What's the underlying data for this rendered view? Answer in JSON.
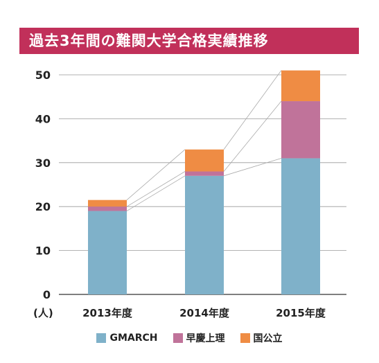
{
  "chart_data": {
    "type": "bar",
    "stacked": true,
    "title": "過去3年間の難関大学合格実績推移",
    "unit": "(人)",
    "categories": [
      "2013年度",
      "2014年度",
      "2015年度"
    ],
    "series": [
      {
        "name": "GMARCH",
        "values": [
          19,
          27,
          31
        ],
        "color": "#7fb1c9"
      },
      {
        "name": "早慶上理",
        "values": [
          1,
          1,
          13
        ],
        "color": "#c0739a"
      },
      {
        "name": "国公立",
        "values": [
          1.5,
          5,
          7
        ],
        "color": "#ef8c44"
      }
    ],
    "ylim": [
      0,
      50
    ],
    "yticks": [
      0,
      10,
      20,
      30,
      40,
      50
    ],
    "grid": true,
    "connector_lines": true,
    "legend_position": "bottom"
  }
}
